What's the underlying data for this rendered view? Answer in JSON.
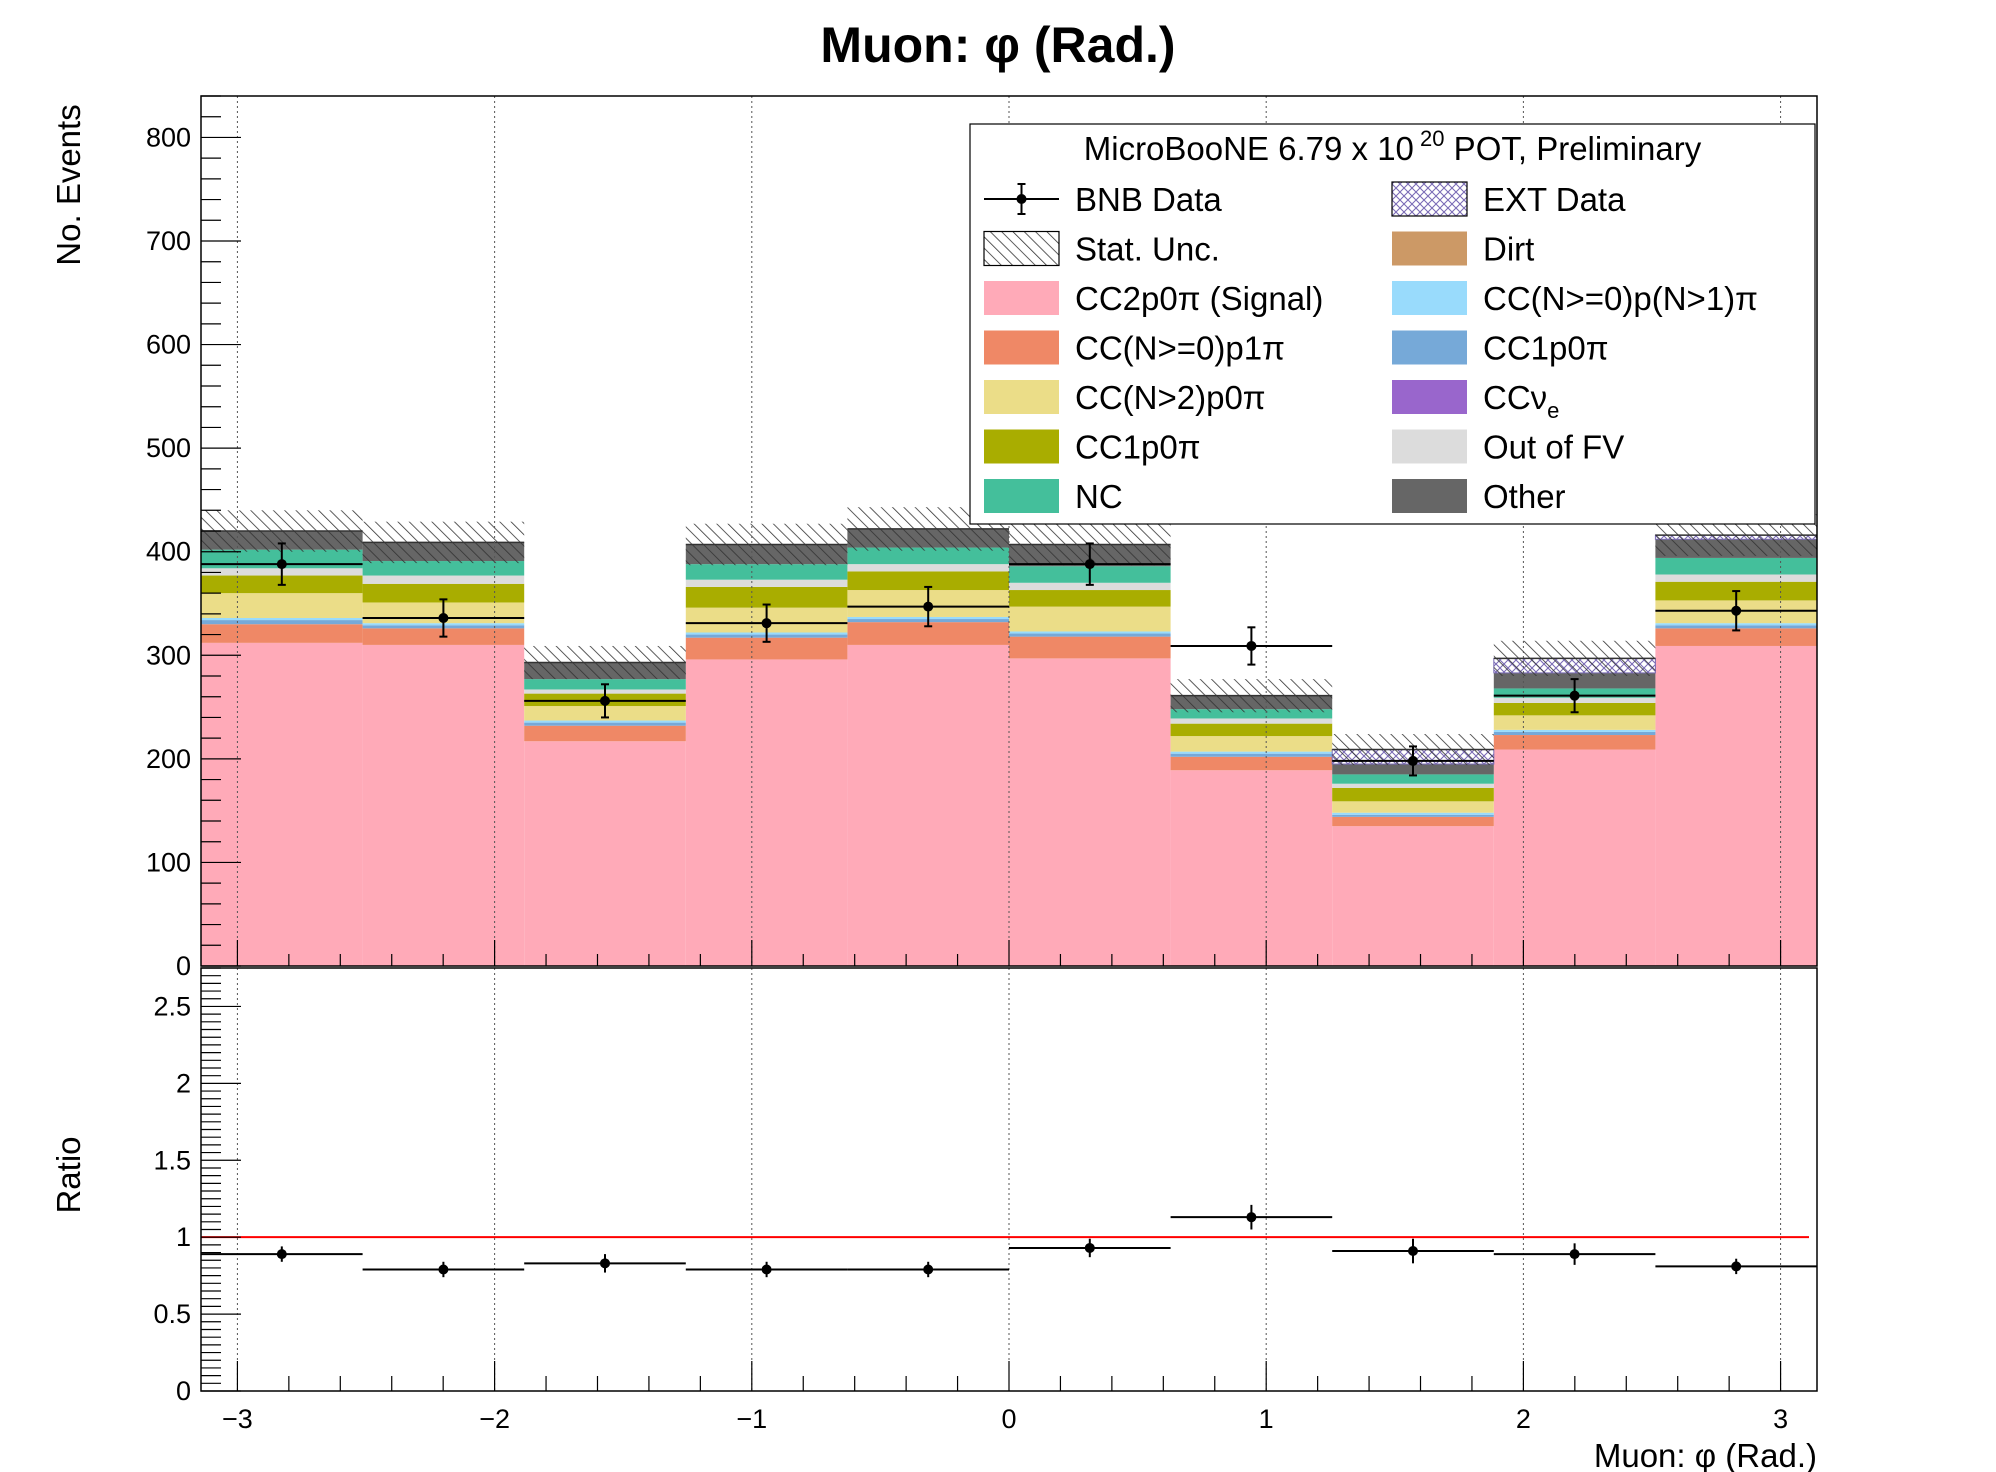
{
  "chart_data": {
    "type": "bar",
    "title": "Muon: φ (Rad.)",
    "xlabel": "Muon: φ (Rad.)",
    "ylabel_top": "No. Events",
    "ylabel_bottom": "Ratio",
    "xlim": [
      -3.14159,
      3.14159
    ],
    "ylim_top": [
      0,
      840
    ],
    "ylim_bottom": [
      0,
      2.75
    ],
    "x_ticks": [
      "−3",
      "−2",
      "−1",
      "0",
      "1",
      "2",
      "3"
    ],
    "y_ticks_top": [
      "0",
      "100",
      "200",
      "300",
      "400",
      "500",
      "600",
      "700",
      "800"
    ],
    "y_ticks_bottom": [
      "0",
      "0.5",
      "1",
      "1.5",
      "2",
      "2.5"
    ],
    "grid": "vertical dotted at major x ticks",
    "bin_edges": [
      -3.14159,
      -2.51327,
      -1.88496,
      -1.25664,
      -0.62832,
      0.0,
      0.62832,
      1.25664,
      1.88496,
      2.51327,
      3.14159
    ],
    "stack": [
      {
        "name": "CC2p0π (Signal)",
        "color": "#ffaab8",
        "values": [
          312,
          310,
          217,
          296,
          310,
          297,
          189,
          135,
          209,
          309
        ]
      },
      {
        "name": "CC(N>=0)p1π",
        "color": "#ef8866",
        "values": [
          18,
          16,
          15,
          21,
          22,
          21,
          13,
          9,
          14,
          17
        ]
      },
      {
        "name": "CC1p0π",
        "color": "#76a9d8",
        "values": [
          4,
          3,
          3,
          3,
          3,
          3,
          3,
          2,
          3,
          3
        ]
      },
      {
        "name": "CC(N>=0)p(N>1)π",
        "color": "#99dbfc",
        "values": [
          2,
          2,
          2,
          2,
          2,
          2,
          2,
          2,
          2,
          2
        ]
      },
      {
        "name": "CC(N>2)p0π",
        "color": "#ebdd88",
        "values": [
          24,
          20,
          14,
          24,
          26,
          24,
          15,
          11,
          14,
          22
        ]
      },
      {
        "name": "CC1p0π",
        "color": "#a9ad00",
        "values": [
          17,
          18,
          12,
          20,
          18,
          16,
          12,
          13,
          12,
          18
        ]
      },
      {
        "name": "Out of FV",
        "color": "#dcdcdc",
        "values": [
          7,
          8,
          4,
          7,
          7,
          7,
          5,
          4,
          5,
          7
        ]
      },
      {
        "name": "NC",
        "color": "#44bf9b",
        "values": [
          18,
          14,
          10,
          15,
          16,
          16,
          9,
          9,
          9,
          16
        ]
      },
      {
        "name": "Other",
        "color": "#666666",
        "values": [
          18,
          18,
          16,
          19,
          18,
          21,
          13,
          10,
          15,
          18
        ]
      },
      {
        "name": "CCνe",
        "color": "#9966cc",
        "values": [
          0,
          0,
          0,
          0,
          0,
          0,
          0,
          0,
          0,
          0
        ]
      },
      {
        "name": "Dirt",
        "color": "#cc9966",
        "values": [
          0,
          0,
          0,
          0,
          0,
          0,
          0,
          0,
          0,
          0
        ]
      },
      {
        "name": "EXT Data",
        "color": "#9b8fcb",
        "values": [
          0,
          0,
          0,
          0,
          0,
          0,
          0,
          14,
          14,
          4
        ]
      }
    ],
    "stat_unc": [
      20,
      20,
      16,
      20,
      21,
      20,
      16,
      15,
      17,
      20
    ],
    "data": {
      "name": "BNB Data",
      "x": [
        -2.82743,
        -2.19911,
        -1.5708,
        -0.94248,
        -0.31416,
        0.31416,
        0.94248,
        1.5708,
        2.19911,
        2.82743
      ],
      "y": [
        388,
        336,
        256,
        331,
        347,
        388,
        309,
        198,
        261,
        343
      ],
      "yerr": [
        20,
        18,
        16,
        18,
        19,
        20,
        18,
        14,
        16,
        19
      ]
    },
    "ratio": {
      "x": [
        -2.82743,
        -2.19911,
        -1.5708,
        -0.94248,
        -0.31416,
        0.31416,
        0.94248,
        1.5708,
        2.19911,
        2.82743
      ],
      "y": [
        0.89,
        0.79,
        0.83,
        0.79,
        0.79,
        0.93,
        1.13,
        0.91,
        0.89,
        0.81
      ],
      "yerr": [
        0.05,
        0.05,
        0.06,
        0.05,
        0.05,
        0.06,
        0.08,
        0.08,
        0.07,
        0.05
      ],
      "reference_line": 1,
      "reference_color": "#ff0000"
    },
    "legend": {
      "placement": "top-right",
      "header": "MicroBooNE 6.79 x 10",
      "header_exp": "20",
      "header_tail": " POT, Preliminary",
      "entries": [
        {
          "label": "BNB Data",
          "style": "marker"
        },
        {
          "label": "EXT Data",
          "style": "crosshatch",
          "color": "#9b8fcb"
        },
        {
          "label": "Stat. Unc.",
          "style": "hatch"
        },
        {
          "label": "Dirt",
          "style": "fill",
          "color": "#cc9966"
        },
        {
          "label": "CC2p0π (Signal)",
          "style": "fill",
          "color": "#ffaab8"
        },
        {
          "label": "CC(N>=0)p(N>1)π",
          "style": "fill",
          "color": "#99dbfc"
        },
        {
          "label": "CC(N>=0)p1π",
          "style": "fill",
          "color": "#ef8866"
        },
        {
          "label": "CC1p0π",
          "style": "fill",
          "color": "#76a9d8"
        },
        {
          "label": "CC(N>2)p0π",
          "style": "fill",
          "color": "#ebdd88"
        },
        {
          "label": "CCν",
          "sub": "e",
          "style": "fill",
          "color": "#9966cc"
        },
        {
          "label": "CC1p0π",
          "style": "fill",
          "color": "#a9ad00"
        },
        {
          "label": "Out of FV",
          "style": "fill",
          "color": "#dcdcdc"
        },
        {
          "label": "NC",
          "style": "fill",
          "color": "#44bf9b"
        },
        {
          "label": "Other",
          "style": "fill",
          "color": "#666666"
        }
      ]
    }
  }
}
